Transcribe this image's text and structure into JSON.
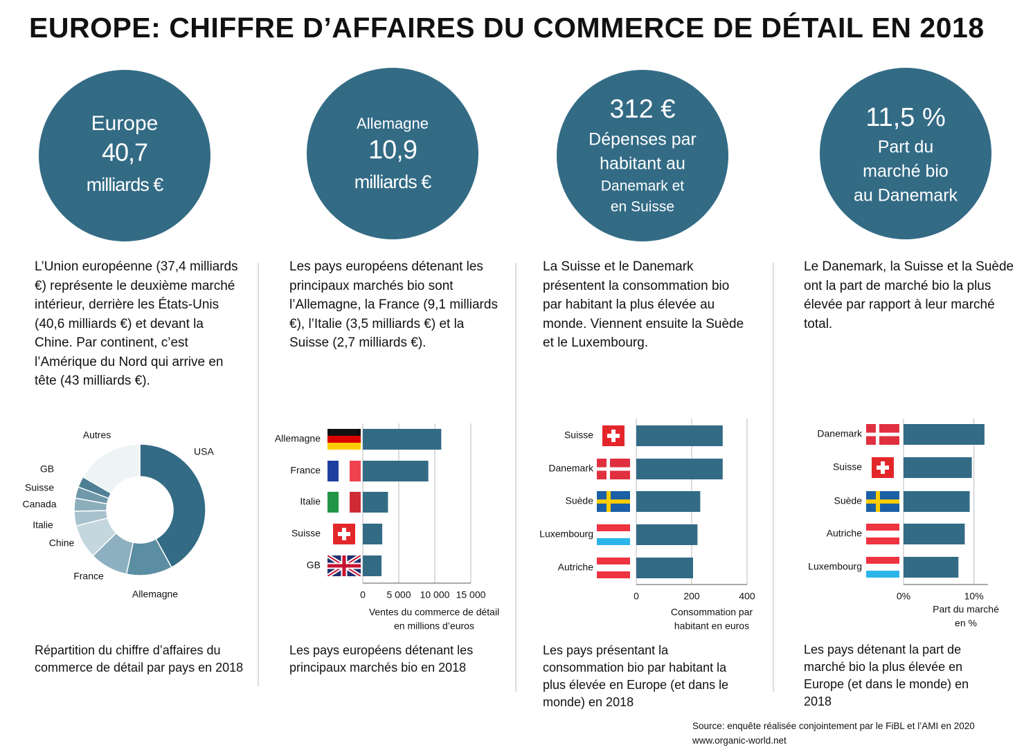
{
  "title": "EUROPE: CHIFFRE D’AFFAIRES DU COMMERCE DE DÉTAIL EN 2018",
  "columns": [
    {
      "circle": [
        "Europe",
        "40,7",
        "milliards €"
      ],
      "text": "L’Union européenne (37,4 milliards €) représente le deuxième marché intérieur, derrière les États-Unis (40,6 milliards €) et devant la Chine. Par continent, c’est l’Amérique du Nord qui arrive en tête (43 milliards €).",
      "caption": "Répartition du chiffre d’affaires du commerce de détail par pays en 2018"
    },
    {
      "circle": [
        "Allemagne",
        "10,9",
        "milliards €"
      ],
      "text": "Les pays européens détenant les principaux marchés bio sont l’Allemagne, la France (9,1 milliards €), l’Italie (3,5 milliards €) et la Suisse (2,7 milliards €).",
      "caption": "Les pays européens détenant les principaux marchés bio en 2018"
    },
    {
      "circle": [
        "312 €",
        "Dépenses par",
        "habitant au",
        "Danemark et",
        "en Suisse"
      ],
      "text": "La Suisse et le Danemark présentent la consommation bio par habitant la plus élevée au monde. Viennent ensuite la Suède et le Luxembourg.",
      "caption": "Les pays présentant la consommation bio par habitant la plus élevée en Europe (et dans le monde) en 2018"
    },
    {
      "circle": [
        "11,5 %",
        "Part du",
        "marché bio",
        "au Danemark"
      ],
      "text": "Le Danemark, la Suisse et la Suède ont la part de marché bio la plus élevée par rapport à leur marché total.",
      "caption": "Les pays détenant la part de marché bio la plus élevée en Europe (et dans le monde) en 2018"
    }
  ],
  "chart_data": [
    {
      "type": "donut",
      "categories": [
        "USA",
        "Allemagne",
        "France",
        "Chine",
        "Italie",
        "Canada",
        "Suisse",
        "GB",
        "Autres"
      ],
      "values": [
        40.6,
        10.9,
        9.1,
        8.1,
        3.5,
        3.1,
        2.7,
        2.6,
        16.1
      ],
      "colors": [
        "#336b85",
        "#5b8ea2",
        "#8cb0bf",
        "#c4d6de",
        "#a8c2cd",
        "#8cadbb",
        "#6f98aa",
        "#4f7f94",
        "#eef3f5"
      ]
    },
    {
      "type": "bar",
      "categories": [
        "Allemagne",
        "France",
        "Italie",
        "Suisse",
        "GB"
      ],
      "values": [
        10900,
        9100,
        3500,
        2700,
        2600
      ],
      "color": "#336b85",
      "xlim": [
        0,
        15000
      ],
      "xticks": [
        0,
        {
          "value": 5000,
          "label": "5 000"
        },
        {
          "value": 10000,
          "label": "10 000"
        },
        {
          "value": 15000,
          "label": "15 000"
        }
      ],
      "xlabel": [
        "Ventes du commerce de détail",
        "en millions d’euros"
      ],
      "grid": true
    },
    {
      "type": "bar",
      "categories": [
        "Suisse",
        "Danemark",
        "Suède",
        "Luxembourg",
        "Autriche"
      ],
      "values": [
        312,
        312,
        231,
        221,
        205
      ],
      "color": "#336b85",
      "xlim": [
        0,
        400
      ],
      "xticks": [
        0,
        200,
        400
      ],
      "xlabel": [
        "Consommation par",
        "habitant en euros"
      ],
      "grid": true
    },
    {
      "type": "bar",
      "categories": [
        "Danemark",
        "Suisse",
        "Suède",
        "Autriche",
        "Luxembourg"
      ],
      "values": [
        11.5,
        9.7,
        9.4,
        8.7,
        7.8
      ],
      "color": "#336b85",
      "xlim": [
        0,
        12
      ],
      "xticks": [
        {
          "value": 0,
          "label": "0%"
        },
        {
          "value": 10,
          "label": "10%"
        }
      ],
      "xlabel": [
        "Part du marché",
        "en %"
      ],
      "grid": true
    }
  ],
  "source": [
    "Source: enquête réalisée conjointement par le FiBL et l’AMI en 2020",
    "www.organic-world.net"
  ]
}
